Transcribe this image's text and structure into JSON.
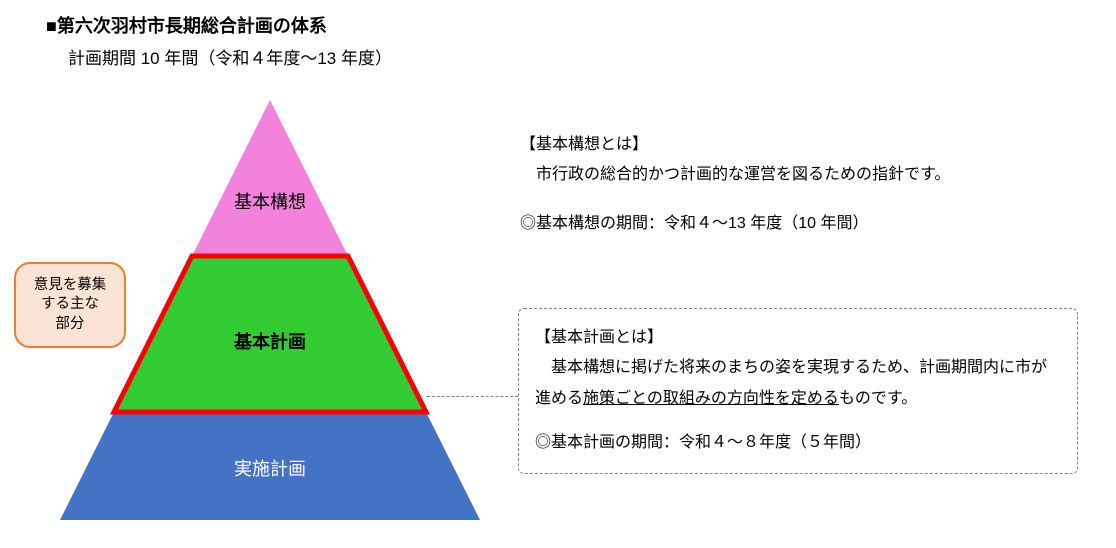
{
  "title": "■第六次羽村市長期総合計画の体系",
  "subtitle": "計画期間 10 年間（令和４年度～13 年度）",
  "pyramid": {
    "type": "infographic",
    "layers": [
      {
        "label": "基本構想",
        "fill": "#f282dc",
        "text_color": "#000000",
        "font_size": 18
      },
      {
        "label": "基本計画",
        "fill": "#33cc33",
        "text_color": "#000000",
        "font_size": 18,
        "font_weight": "bold",
        "highlight_border": "#ff0000",
        "highlight_width": 4
      },
      {
        "label": "実施計画",
        "fill": "#4472c4",
        "text_color": "#ffffff",
        "font_size": 18
      }
    ],
    "background": "#ffffff"
  },
  "callout": {
    "text": "意見を募集\nする主な\n部分",
    "border": "#ed7d31",
    "fill": "#fbe4d5"
  },
  "desc_top": {
    "heading": "【基本構想とは】",
    "body": "　市行政の総合的かつ計画的な運営を図るための指針です。",
    "period": "◎基本構想の期間：令和４～13 年度（10 年間）"
  },
  "desc_box": {
    "heading": "【基本計画とは】",
    "body_pre": "　基本構想に掲げた将来のまちの姿を実現するため、計画期間内に市が進める",
    "body_underline": "施策ごとの取組みの方向性を定める",
    "body_post": "ものです。",
    "period": "◎基本計画の期間：令和４～８年度（５年間）",
    "border": "#7f7f7f"
  }
}
